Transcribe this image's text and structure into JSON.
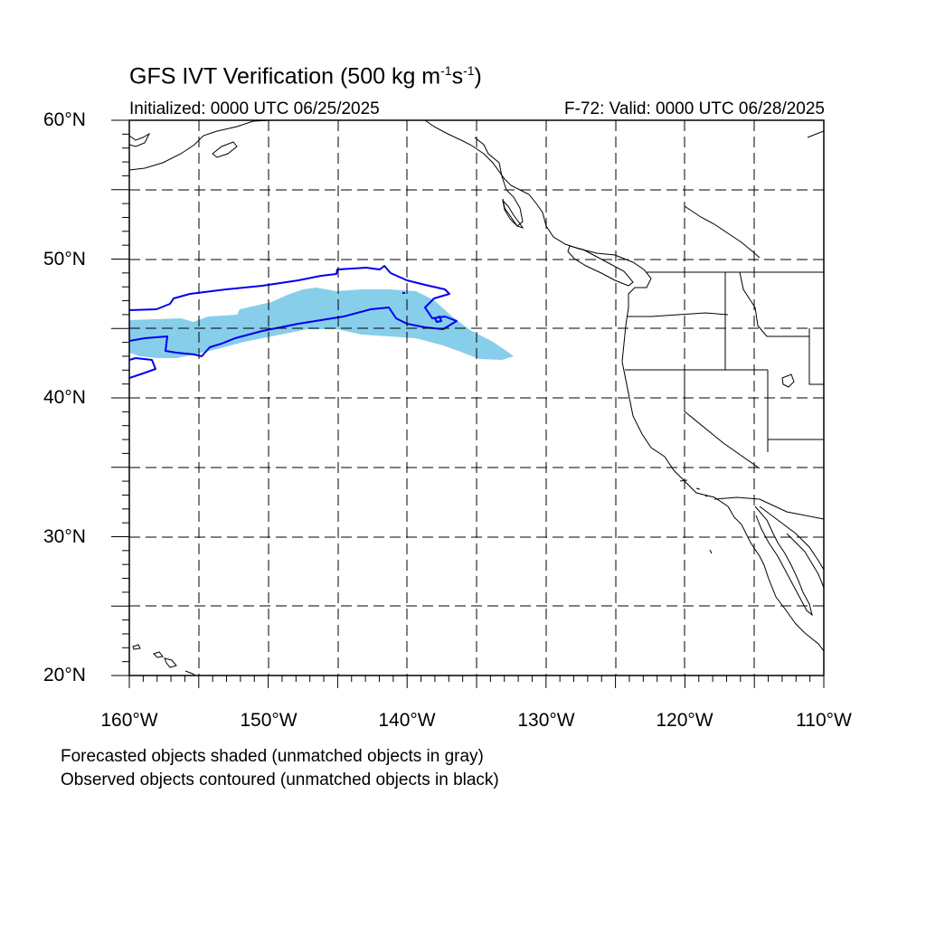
{
  "header": {
    "title_main": "GFS IVT Verification (500 kg m",
    "title_exp1": "-1",
    "title_mid": "s",
    "title_exp2": "-1",
    "title_end": ")",
    "initialized": "Initialized: 0000 UTC 06/25/2025",
    "valid": "F-72: Valid: 0000 UTC 06/28/2025"
  },
  "map": {
    "lon_range": [
      -160,
      -110
    ],
    "lat_range": [
      20,
      60
    ],
    "projection": "cylindrical-equidistant",
    "gridlines": "dashed every 5 degrees",
    "lat_labels": [
      "60°N",
      "50°N",
      "40°N",
      "30°N",
      "20°N"
    ],
    "lon_labels": [
      "160°W",
      "150°W",
      "140°W",
      "130°W",
      "120°W",
      "110°W"
    ],
    "forecast_fill_color": "#87ceeb",
    "observed_contour_color": "#0000ee",
    "coastline_color": "#000000"
  },
  "legend": {
    "line1": "Forecasted objects shaded (unmatched objects in gray)",
    "line2": "Observed objects contoured (unmatched objects in black)"
  }
}
